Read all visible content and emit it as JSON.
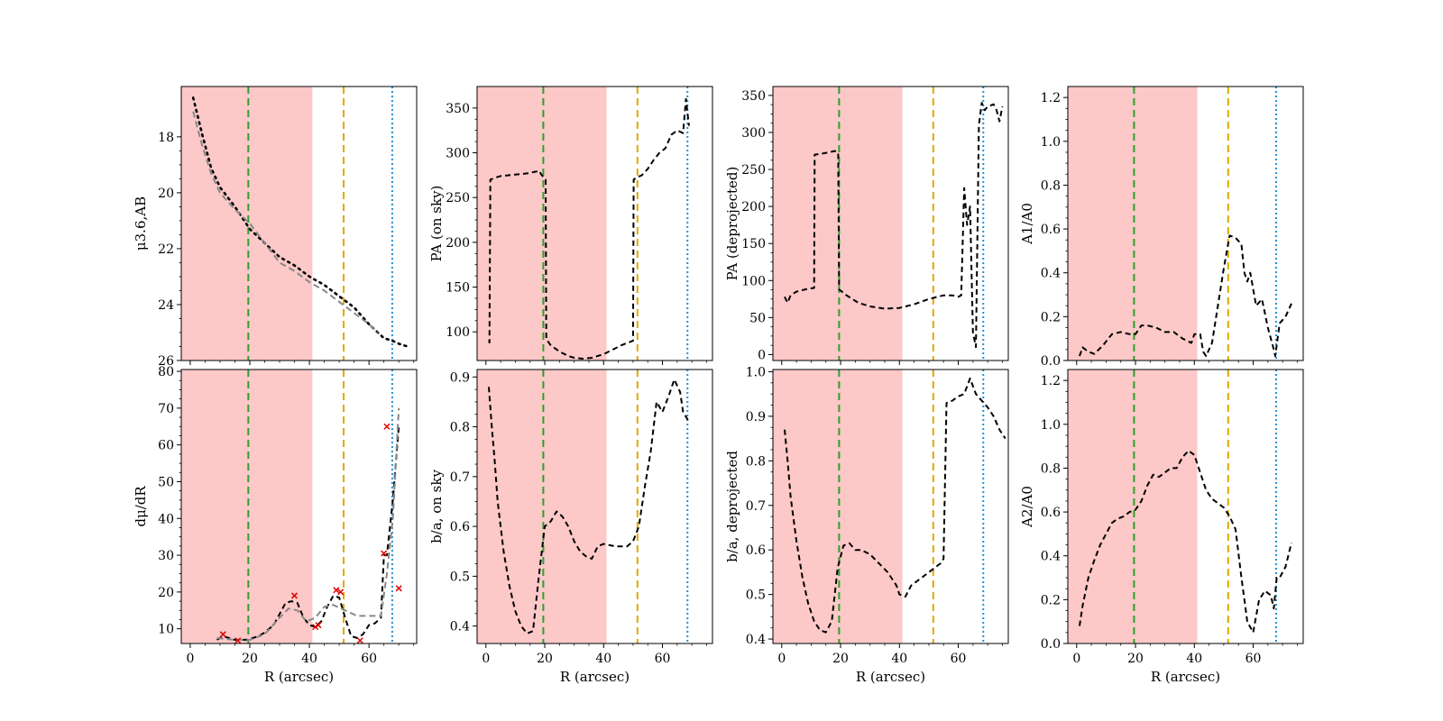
{
  "colors": {
    "shade": "#fcc8c8",
    "green": "#2ca02c",
    "orange": "#e0a800",
    "blue": "#1f8fd8",
    "black": "#000000",
    "gray": "#888888",
    "red": "#e00000"
  },
  "chart_data": [
    {
      "id": "mu",
      "type": "line",
      "xlim": [
        -3,
        76
      ],
      "ylim": [
        26,
        16.2
      ],
      "inverted_y": true,
      "xticks": [
        0,
        20,
        40,
        60
      ],
      "xtick_labels_shown": false,
      "yticks": [
        18,
        20,
        22,
        24,
        26
      ],
      "ylabel": "μ3.6,AB",
      "xlabel": "",
      "shade": [
        -3,
        41
      ],
      "vlines": {
        "green": 19.5,
        "orange": 51.5,
        "blue": 67.8
      },
      "series": [
        {
          "name": "profile",
          "style": "dotted",
          "color": "black",
          "x": [
            1,
            4,
            7,
            10,
            15,
            20,
            25,
            30,
            35,
            40,
            45,
            50,
            55,
            60,
            65,
            68,
            70,
            73
          ],
          "y": [
            16.6,
            17.9,
            19.1,
            19.8,
            20.5,
            21.3,
            21.8,
            22.3,
            22.6,
            23.0,
            23.3,
            23.7,
            24.1,
            24.7,
            25.2,
            25.3,
            25.4,
            25.5
          ]
        },
        {
          "name": "model",
          "style": "dashed",
          "color": "gray",
          "x": [
            1,
            4,
            7,
            10,
            15,
            20,
            25,
            30,
            35,
            40,
            45,
            50,
            55,
            60,
            63
          ],
          "y": [
            17.1,
            18.3,
            19.3,
            20.0,
            20.6,
            21.1,
            21.8,
            22.5,
            22.8,
            23.2,
            23.5,
            23.9,
            24.3,
            24.7,
            25.0
          ]
        }
      ]
    },
    {
      "id": "pa_sky",
      "type": "line",
      "xlim": [
        -3,
        77
      ],
      "ylim": [
        68,
        374
      ],
      "xticks": [
        0,
        20,
        40,
        60
      ],
      "xtick_labels_shown": false,
      "yticks": [
        100,
        150,
        200,
        250,
        300,
        350
      ],
      "ylabel": "PA (on sky)",
      "xlabel": "",
      "shade": [
        -3,
        41
      ],
      "vlines": {
        "green": 19.5,
        "orange": 51.5,
        "blue": 68.5
      },
      "series": [
        {
          "name": "PA sky",
          "style": "dashed",
          "color": "black",
          "x": [
            1,
            1.2,
            1.5,
            3,
            5,
            8,
            11,
            14,
            17,
            18,
            19,
            20.3,
            20.5,
            22,
            25,
            28,
            30,
            33,
            36,
            40,
            43,
            46,
            50,
            50.2,
            51,
            53,
            55,
            57,
            59,
            61,
            63,
            65,
            67,
            68,
            69
          ],
          "y": [
            90,
            88,
            270,
            272,
            274,
            275,
            276,
            277,
            279,
            280,
            275,
            270,
            92,
            85,
            78,
            73,
            71,
            70,
            71,
            75,
            80,
            85,
            90,
            270,
            272,
            275,
            282,
            292,
            300,
            305,
            320,
            325,
            322,
            360,
            330
          ]
        }
      ]
    },
    {
      "id": "pa_deproj",
      "type": "line",
      "xlim": [
        -3,
        77
      ],
      "ylim": [
        -8,
        362
      ],
      "xticks": [
        0,
        20,
        40,
        60
      ],
      "xtick_labels_shown": false,
      "yticks": [
        0,
        50,
        100,
        150,
        200,
        250,
        300,
        350
      ],
      "ylabel": "PA (deprojected)",
      "xlabel": "",
      "shade": [
        -3,
        41
      ],
      "vlines": {
        "green": 19.5,
        "orange": 51.5,
        "blue": 68.5
      },
      "series": [
        {
          "name": "PA deprojected",
          "style": "dashed",
          "color": "black",
          "x": [
            1,
            2,
            3,
            5,
            8,
            11,
            11.2,
            13,
            16,
            18,
            19.2,
            19.5,
            22,
            26,
            30,
            35,
            40,
            45,
            50,
            55,
            58,
            60,
            61,
            62,
            63,
            64,
            65,
            66,
            67,
            68,
            69,
            70,
            72,
            73,
            74,
            75
          ],
          "y": [
            78,
            70,
            80,
            85,
            88,
            90,
            270,
            271,
            273,
            275,
            273,
            88,
            80,
            70,
            65,
            62,
            63,
            68,
            75,
            80,
            80,
            78,
            80,
            225,
            175,
            200,
            30,
            10,
            310,
            340,
            330,
            335,
            338,
            330,
            315,
            335
          ]
        }
      ]
    },
    {
      "id": "a1",
      "type": "line",
      "xlim": [
        -3,
        77
      ],
      "ylim": [
        0,
        1.25
      ],
      "xticks": [
        0,
        20,
        40,
        60
      ],
      "xtick_labels_shown": false,
      "yticks": [
        0.0,
        0.2,
        0.4,
        0.6,
        0.8,
        1.0,
        1.2
      ],
      "ylabel": "A1/A0",
      "xlabel": "",
      "shade": [
        -3,
        41
      ],
      "vlines": {
        "green": 19.5,
        "orange": 51.5,
        "blue": 67.8
      },
      "series": [
        {
          "name": "A1/A0",
          "style": "dashed",
          "color": "black",
          "x": [
            1,
            2,
            4,
            6,
            9,
            12,
            15,
            18,
            20,
            22,
            24,
            27,
            30,
            33,
            36,
            39,
            40,
            42,
            43,
            44,
            46,
            48,
            50,
            52,
            54,
            56,
            57,
            58,
            59,
            61,
            63,
            65,
            67,
            67.5,
            69,
            71,
            73
          ],
          "y": [
            0.02,
            0.06,
            0.04,
            0.03,
            0.07,
            0.12,
            0.13,
            0.12,
            0.12,
            0.16,
            0.16,
            0.15,
            0.13,
            0.13,
            0.1,
            0.08,
            0.12,
            0.12,
            0.04,
            0.02,
            0.08,
            0.25,
            0.42,
            0.57,
            0.56,
            0.53,
            0.4,
            0.36,
            0.4,
            0.25,
            0.28,
            0.15,
            0.05,
            0.02,
            0.17,
            0.2,
            0.26
          ]
        }
      ]
    },
    {
      "id": "dmu",
      "type": "line",
      "xlim": [
        -3,
        76
      ],
      "ylim": [
        6,
        80.5
      ],
      "xticks": [
        0,
        20,
        40,
        60
      ],
      "xtick_labels": [
        "0",
        "20",
        "40",
        "60"
      ],
      "yticks": [
        10,
        20,
        30,
        40,
        50,
        60,
        70,
        80
      ],
      "ylabel": "dμ/dR",
      "xlabel": "R (arcsec)",
      "shade": [
        -3,
        41
      ],
      "vlines": {
        "green": 19.5,
        "orange": 51.5,
        "blue": 67.8
      },
      "series": [
        {
          "name": "derivative",
          "style": "dashed",
          "color": "black",
          "x": [
            9,
            11,
            13,
            15,
            17,
            19,
            21,
            23,
            25,
            28,
            30,
            32,
            34,
            36,
            38,
            40,
            42,
            44,
            46,
            48,
            50,
            52,
            54,
            56,
            58,
            60,
            62,
            64,
            65,
            66,
            68,
            70
          ],
          "y": [
            7,
            8,
            7.5,
            7,
            7,
            7,
            7.5,
            8,
            9,
            11,
            14,
            17,
            17.5,
            17,
            13,
            11,
            10.5,
            12,
            16,
            19,
            18.5,
            13,
            8,
            7.5,
            8.5,
            11,
            11.5,
            13,
            30,
            30,
            45,
            65
          ]
        },
        {
          "name": "smoothed",
          "style": "dashed",
          "color": "gray",
          "x": [
            9,
            15,
            20,
            25,
            30,
            33,
            36,
            39,
            42,
            45,
            48,
            52,
            56,
            60,
            64,
            66,
            68,
            70
          ],
          "y": [
            7.5,
            7,
            7,
            8.5,
            13,
            15.5,
            15,
            12,
            13,
            16,
            16.5,
            15,
            13.5,
            13.5,
            13.5,
            25,
            40,
            70
          ]
        },
        {
          "name": "points",
          "style": "markers",
          "color": "red",
          "x": [
            11,
            16,
            35,
            42,
            43,
            49,
            50.5,
            57,
            65,
            66,
            70
          ],
          "y": [
            8.5,
            6.8,
            19,
            10.5,
            11,
            20.5,
            20,
            6.8,
            30.5,
            65,
            21
          ]
        }
      ]
    },
    {
      "id": "ba_sky",
      "type": "line",
      "xlim": [
        -3,
        77
      ],
      "ylim": [
        0.365,
        0.915
      ],
      "xticks": [
        0,
        20,
        40,
        60
      ],
      "xtick_labels": [
        "0",
        "20",
        "40",
        "60"
      ],
      "yticks": [
        0.4,
        0.5,
        0.6,
        0.7,
        0.8,
        0.9
      ],
      "ylabel": "b/a, on sky",
      "xlabel": "R (arcsec)",
      "shade": [
        -3,
        41
      ],
      "vlines": {
        "green": 19.5,
        "orange": 51.5,
        "blue": 68.5
      },
      "series": [
        {
          "name": "b/a sky",
          "style": "dashed",
          "color": "black",
          "x": [
            1,
            2,
            3,
            4,
            6,
            8,
            10,
            12,
            14,
            16,
            18,
            20,
            22,
            24,
            26,
            28,
            30,
            32,
            34,
            36,
            38,
            40,
            44,
            48,
            50,
            52,
            54,
            56,
            58,
            60,
            62,
            64,
            66,
            67,
            69
          ],
          "y": [
            0.88,
            0.8,
            0.73,
            0.65,
            0.55,
            0.48,
            0.43,
            0.4,
            0.385,
            0.39,
            0.5,
            0.6,
            0.61,
            0.63,
            0.62,
            0.6,
            0.57,
            0.55,
            0.54,
            0.535,
            0.56,
            0.565,
            0.56,
            0.56,
            0.57,
            0.6,
            0.68,
            0.75,
            0.85,
            0.83,
            0.86,
            0.895,
            0.87,
            0.83,
            0.81
          ]
        }
      ]
    },
    {
      "id": "ba_deproj",
      "type": "line",
      "xlim": [
        -3,
        77
      ],
      "ylim": [
        0.39,
        1.005
      ],
      "xticks": [
        0,
        20,
        40,
        60
      ],
      "xtick_labels": [
        "0",
        "20",
        "40",
        "60"
      ],
      "yticks": [
        0.4,
        0.5,
        0.6,
        0.7,
        0.8,
        0.9,
        1.0
      ],
      "ylabel": "b/a, deprojected",
      "xlabel": "R (arcsec)",
      "shade": [
        -3,
        41
      ],
      "vlines": {
        "green": 19.5,
        "orange": 51.5,
        "blue": 68.5
      },
      "series": [
        {
          "name": "b/a deprojected",
          "style": "dashed",
          "color": "black",
          "x": [
            1,
            2,
            3,
            5,
            7,
            9,
            11,
            13,
            15,
            17,
            19,
            21,
            23,
            25,
            27,
            30,
            33,
            36,
            39,
            40,
            42,
            44,
            48,
            52,
            54,
            55,
            56,
            58,
            60,
            62,
            64,
            66,
            68,
            70,
            72,
            74,
            76
          ],
          "y": [
            0.87,
            0.8,
            0.72,
            0.62,
            0.54,
            0.48,
            0.44,
            0.42,
            0.415,
            0.44,
            0.56,
            0.61,
            0.615,
            0.6,
            0.6,
            0.59,
            0.57,
            0.55,
            0.52,
            0.5,
            0.495,
            0.52,
            0.54,
            0.56,
            0.57,
            0.58,
            0.93,
            0.935,
            0.945,
            0.95,
            0.985,
            0.95,
            0.935,
            0.92,
            0.9,
            0.87,
            0.85
          ]
        }
      ]
    },
    {
      "id": "a2",
      "type": "line",
      "xlim": [
        -3,
        77
      ],
      "ylim": [
        0,
        1.25
      ],
      "xticks": [
        0,
        20,
        40,
        60
      ],
      "xtick_labels": [
        "0",
        "20",
        "40",
        "60"
      ],
      "yticks": [
        0.0,
        0.2,
        0.4,
        0.6,
        0.8,
        1.0,
        1.2
      ],
      "ylabel": "A2/A0",
      "xlabel": "R (arcsec)",
      "shade": [
        -3,
        41
      ],
      "vlines": {
        "green": 19.5,
        "orange": 51.5,
        "blue": 67.8
      },
      "series": [
        {
          "name": "A2/A0",
          "style": "dashed",
          "color": "black",
          "x": [
            1,
            2,
            4,
            6,
            8,
            10,
            12,
            14,
            16,
            18,
            20,
            22,
            24,
            26,
            28,
            30,
            32,
            34,
            36,
            38,
            40,
            42,
            44,
            46,
            48,
            50,
            52,
            54,
            56,
            57,
            58,
            60,
            62,
            64,
            66,
            67,
            68,
            69,
            71,
            73
          ],
          "y": [
            0.08,
            0.17,
            0.3,
            0.38,
            0.45,
            0.5,
            0.55,
            0.57,
            0.58,
            0.6,
            0.61,
            0.65,
            0.72,
            0.77,
            0.76,
            0.78,
            0.8,
            0.8,
            0.85,
            0.88,
            0.86,
            0.78,
            0.7,
            0.66,
            0.64,
            0.62,
            0.58,
            0.52,
            0.3,
            0.2,
            0.1,
            0.05,
            0.2,
            0.24,
            0.22,
            0.16,
            0.3,
            0.3,
            0.35,
            0.46
          ]
        }
      ]
    }
  ]
}
